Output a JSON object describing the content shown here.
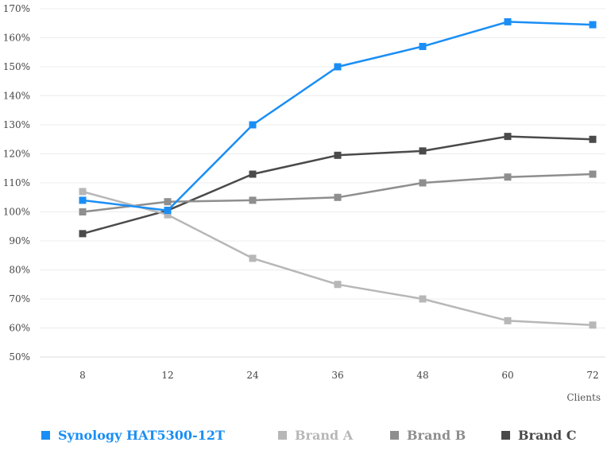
{
  "chart_data": {
    "type": "line",
    "title": "",
    "xlabel": "Clients",
    "ylabel": "",
    "categories": [
      "8",
      "12",
      "24",
      "36",
      "48",
      "60",
      "72"
    ],
    "y_ticks": [
      "50%",
      "60%",
      "70%",
      "80%",
      "90%",
      "100%",
      "110%",
      "120%",
      "130%",
      "140%",
      "150%",
      "160%",
      "170%"
    ],
    "ylim": [
      50,
      170
    ],
    "grid": true,
    "legend_placement": "bottom",
    "series": [
      {
        "name": "Synology HAT5300-12T",
        "color": "#1a8ef5",
        "values": [
          104,
          100.5,
          130,
          150,
          157,
          165.5,
          164.5
        ]
      },
      {
        "name": "Brand A",
        "color": "#b7b7b7",
        "values": [
          107,
          99,
          84,
          75,
          70,
          62.5,
          61
        ]
      },
      {
        "name": "Brand B",
        "color": "#8e8e8e",
        "values": [
          100,
          103.5,
          104,
          105,
          110,
          112,
          113
        ]
      },
      {
        "name": "Brand C",
        "color": "#4a4a4a",
        "values": [
          92.5,
          100.5,
          113,
          119.5,
          121,
          126,
          125
        ]
      }
    ]
  }
}
